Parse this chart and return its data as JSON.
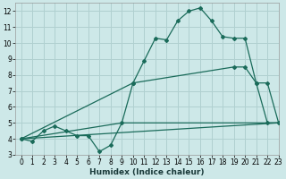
{
  "bg_color": "#cde8e8",
  "grid_color": "#b0d0d0",
  "line_color": "#1a6b5a",
  "line1_x": [
    0,
    1,
    2,
    3,
    4,
    5,
    6,
    7,
    8,
    9,
    10,
    11,
    12,
    13,
    14,
    15,
    16,
    17,
    18,
    19,
    20,
    21,
    22,
    23
  ],
  "line1_y": [
    4.0,
    3.85,
    4.5,
    4.8,
    4.5,
    4.2,
    4.2,
    3.2,
    3.6,
    5.0,
    7.5,
    8.9,
    10.3,
    10.2,
    11.4,
    12.0,
    12.2,
    11.4,
    10.4,
    10.3,
    10.3,
    7.5,
    5.0,
    5.0
  ],
  "line2_x": [
    0,
    10,
    19,
    20,
    21,
    22,
    23
  ],
  "line2_y": [
    4.0,
    7.5,
    8.5,
    8.5,
    7.5,
    7.5,
    5.0
  ],
  "line3_x": [
    0,
    23
  ],
  "line3_y": [
    4.0,
    5.0
  ],
  "line4_x": [
    0,
    9,
    22,
    23
  ],
  "line4_y": [
    4.0,
    5.0,
    5.0,
    5.0
  ],
  "xlim": [
    -0.5,
    23
  ],
  "ylim": [
    3,
    12.5
  ],
  "yticks": [
    3,
    4,
    5,
    6,
    7,
    8,
    9,
    10,
    11,
    12
  ],
  "xticks": [
    0,
    1,
    2,
    3,
    4,
    5,
    6,
    7,
    8,
    9,
    10,
    11,
    12,
    13,
    14,
    15,
    16,
    17,
    18,
    19,
    20,
    21,
    22,
    23
  ],
  "xlabel": "Humidex (Indice chaleur)",
  "tick_fontsize": 5.5,
  "xlabel_fontsize": 6.5
}
